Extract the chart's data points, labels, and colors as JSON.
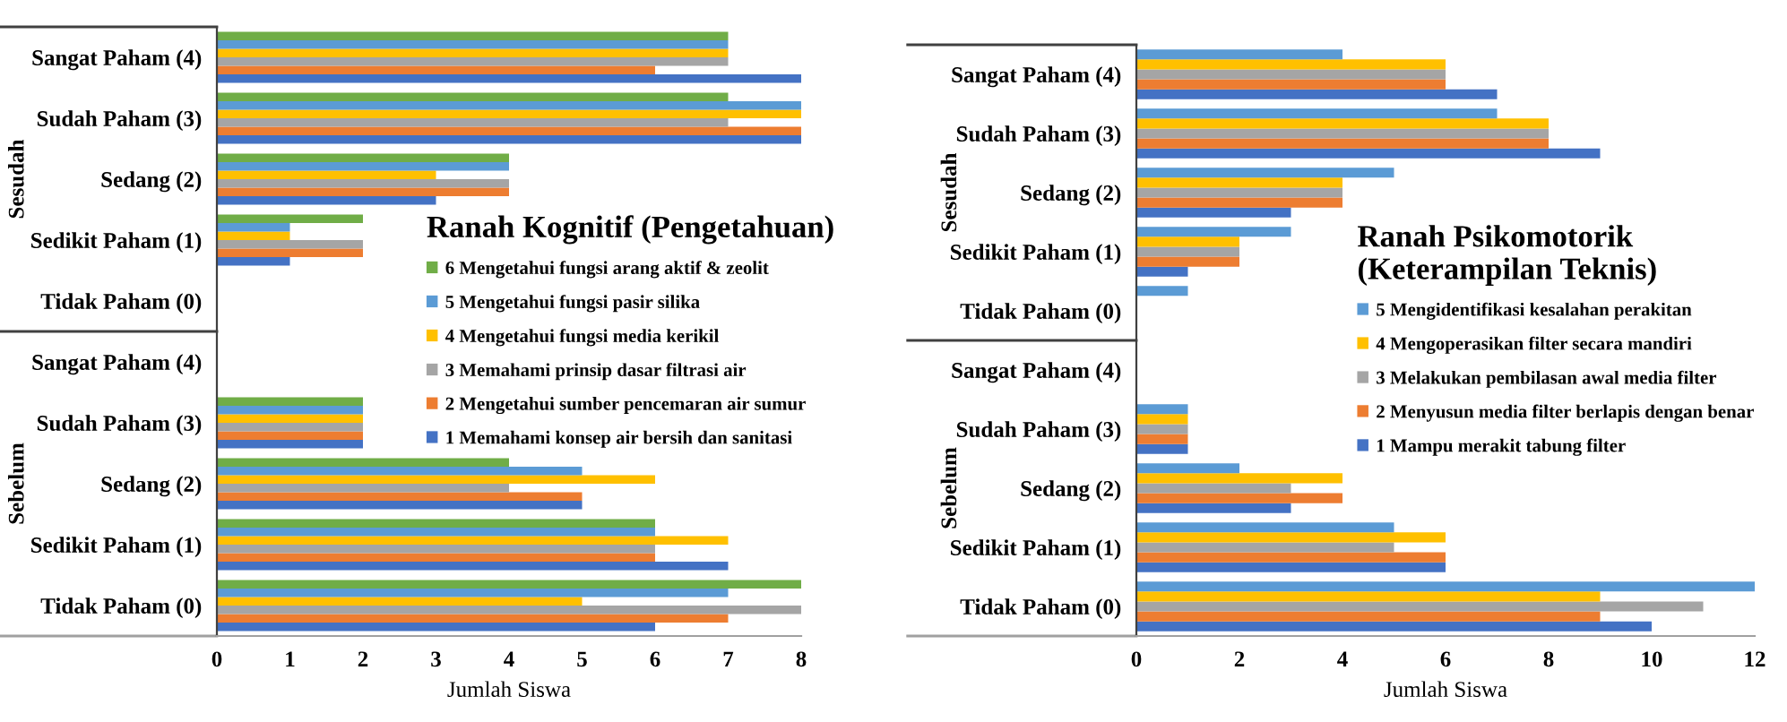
{
  "chart_data": [
    {
      "type": "bar",
      "orientation": "horizontal",
      "title": "Ranah Kognitif (Pengetahuan)",
      "xlabel": "Jumlah Siswa",
      "categories": [
        "Sangat Paham (4)",
        "Sudah Paham (3)",
        "Sedang (2)",
        "Sedikit Paham (1)",
        "Tidak Paham (0)",
        "Sangat Paham (4)",
        "Sudah Paham (3)",
        "Sedang (2)",
        "Sedikit Paham (1)",
        "Tidak Paham (0)"
      ],
      "annotations": [
        "Sesudah",
        "Sebelum"
      ],
      "xlim": [
        0,
        8
      ],
      "xticks": [
        0,
        1,
        2,
        3,
        4,
        5,
        6,
        7,
        8
      ],
      "grid": false,
      "legend": "right",
      "series": [
        {
          "name": "1 Memahami konsep air bersih dan sanitasi",
          "color": "#4472c4",
          "values": [
            8,
            8,
            3,
            1,
            0,
            0,
            2,
            5,
            7,
            6
          ]
        },
        {
          "name": "2 Mengetahui sumber pencemaran air sumur",
          "color": "#ed7d31",
          "values": [
            6,
            8,
            4,
            2,
            0,
            0,
            2,
            5,
            6,
            7
          ]
        },
        {
          "name": "3 Memahami prinsip dasar filtrasi air",
          "color": "#a5a5a5",
          "values": [
            7,
            7,
            4,
            2,
            0,
            0,
            2,
            4,
            6,
            8
          ]
        },
        {
          "name": "4 Mengetahui fungsi media kerikil",
          "color": "#ffc000",
          "values": [
            7,
            8,
            3,
            1,
            0,
            0,
            2,
            6,
            7,
            5
          ]
        },
        {
          "name": "5 Mengetahui fungsi pasir silika",
          "color": "#5b9bd5",
          "values": [
            7,
            8,
            4,
            1,
            0,
            0,
            2,
            5,
            6,
            7
          ]
        },
        {
          "name": "6 Mengetahui fungsi arang aktif & zeolit",
          "color": "#70ad47",
          "values": [
            7,
            7,
            4,
            2,
            0,
            0,
            2,
            4,
            6,
            8
          ]
        }
      ]
    },
    {
      "type": "bar",
      "orientation": "horizontal",
      "title": "Ranah Psikomotorik\n(Keterampilan Teknis)",
      "xlabel": "Jumlah Siswa",
      "categories": [
        "Sangat Paham (4)",
        "Sudah Paham (3)",
        "Sedang (2)",
        "Sedikit Paham (1)",
        "Tidak Paham (0)",
        "Sangat Paham (4)",
        "Sudah Paham (3)",
        "Sedang (2)",
        "Sedikit Paham (1)",
        "Tidak Paham (0)"
      ],
      "annotations": [
        "Sesudah",
        "Sebelum"
      ],
      "xlim": [
        0,
        12
      ],
      "xticks": [
        0,
        2,
        4,
        6,
        8,
        10,
        12
      ],
      "grid": false,
      "legend": "right",
      "series": [
        {
          "name": "1 Mampu merakit tabung filter",
          "color": "#4472c4",
          "values": [
            7,
            9,
            3,
            1,
            0,
            0,
            1,
            3,
            6,
            10
          ]
        },
        {
          "name": "2 Menyusun media filter berlapis dengan benar",
          "color": "#ed7d31",
          "values": [
            6,
            8,
            4,
            2,
            0,
            0,
            1,
            4,
            6,
            9
          ]
        },
        {
          "name": "3 Melakukan pembilasan awal media filter",
          "color": "#a5a5a5",
          "values": [
            6,
            8,
            4,
            2,
            0,
            0,
            1,
            3,
            5,
            11
          ]
        },
        {
          "name": "4 Mengoperasikan filter secara mandiri",
          "color": "#ffc000",
          "values": [
            6,
            8,
            4,
            2,
            0,
            0,
            1,
            4,
            6,
            9
          ]
        },
        {
          "name": "5 Mengidentifikasi kesalahan perakitan",
          "color": "#5b9bd5",
          "values": [
            4,
            7,
            5,
            3,
            1,
            0,
            1,
            2,
            5,
            12
          ]
        }
      ]
    }
  ]
}
